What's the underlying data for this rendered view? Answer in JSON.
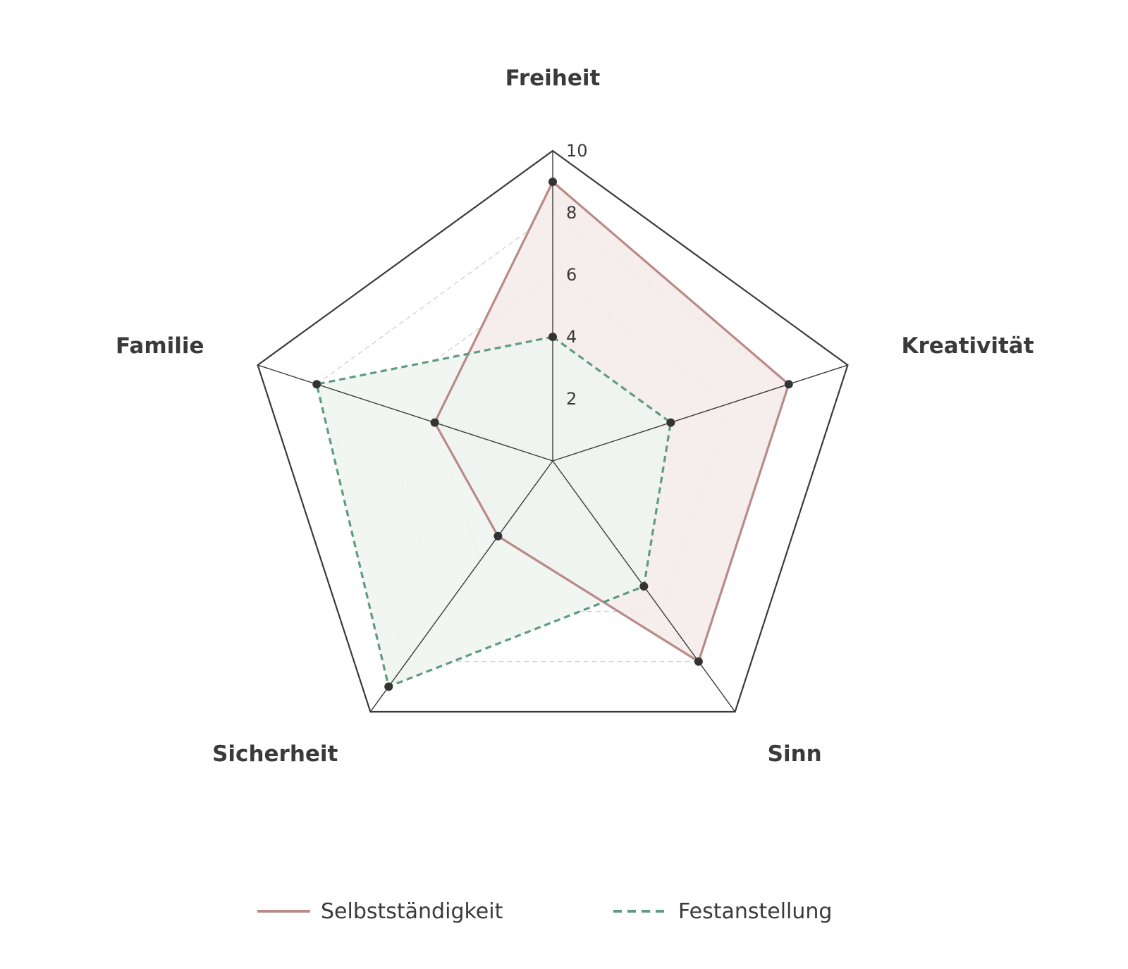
{
  "chart_data": {
    "type": "radar",
    "axes": [
      "Freiheit",
      "Kreativität",
      "Sinn",
      "Sicherheit",
      "Familie"
    ],
    "rlim": [
      0,
      10
    ],
    "ticks": [
      "2",
      "4",
      "6",
      "8",
      "10"
    ],
    "tick_values": [
      2,
      4,
      6,
      8,
      10
    ],
    "grid": true,
    "legend_position": "bottom",
    "series": [
      {
        "name": "Selbstständigkeit",
        "values": [
          9,
          8,
          8,
          3,
          4
        ],
        "color": "#b98a88",
        "fill": "#f4eaea",
        "line_style": "solid"
      },
      {
        "name": "Festanstellung",
        "values": [
          4,
          4,
          5,
          9,
          8
        ],
        "color": "#5f9b82",
        "fill": "#eef4f1",
        "line_style": "dashed"
      }
    ]
  },
  "colors": {
    "outer_grid": "#3a3a3a",
    "inner_grid": "#cccccc",
    "marker": "#333333",
    "text": "#3a3a3a"
  }
}
